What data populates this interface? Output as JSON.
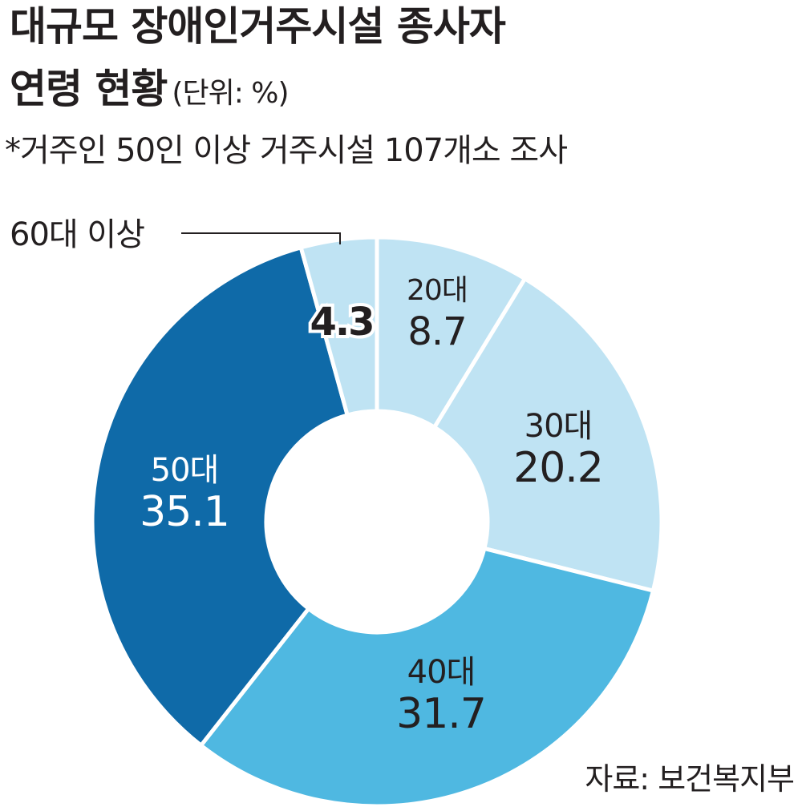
{
  "title": {
    "line1": "대규모 장애인거주시설 종사자",
    "line2": "연령 현황",
    "unit": "(단위: %)"
  },
  "subtitle": "*거주인 50인 이상 거주시설 107개소 조사",
  "source": "자료: 보건복지부",
  "chart_data": {
    "type": "pie",
    "style": "donut",
    "categories": [
      "20대",
      "30대",
      "40대",
      "50대",
      "60대 이상"
    ],
    "values": [
      8.7,
      20.2,
      31.7,
      35.1,
      4.3
    ],
    "value_labels": [
      "8.7",
      "20.2",
      "31.7",
      "35.1",
      "4.3"
    ],
    "colors": [
      "#bfe3f3",
      "#bfe3f3",
      "#4fb8e1",
      "#0f6aa8",
      "#bfe3f3"
    ],
    "label_colors": [
      "#231f20",
      "#231f20",
      "#231f20",
      "#ffffff",
      "#231f20"
    ]
  }
}
